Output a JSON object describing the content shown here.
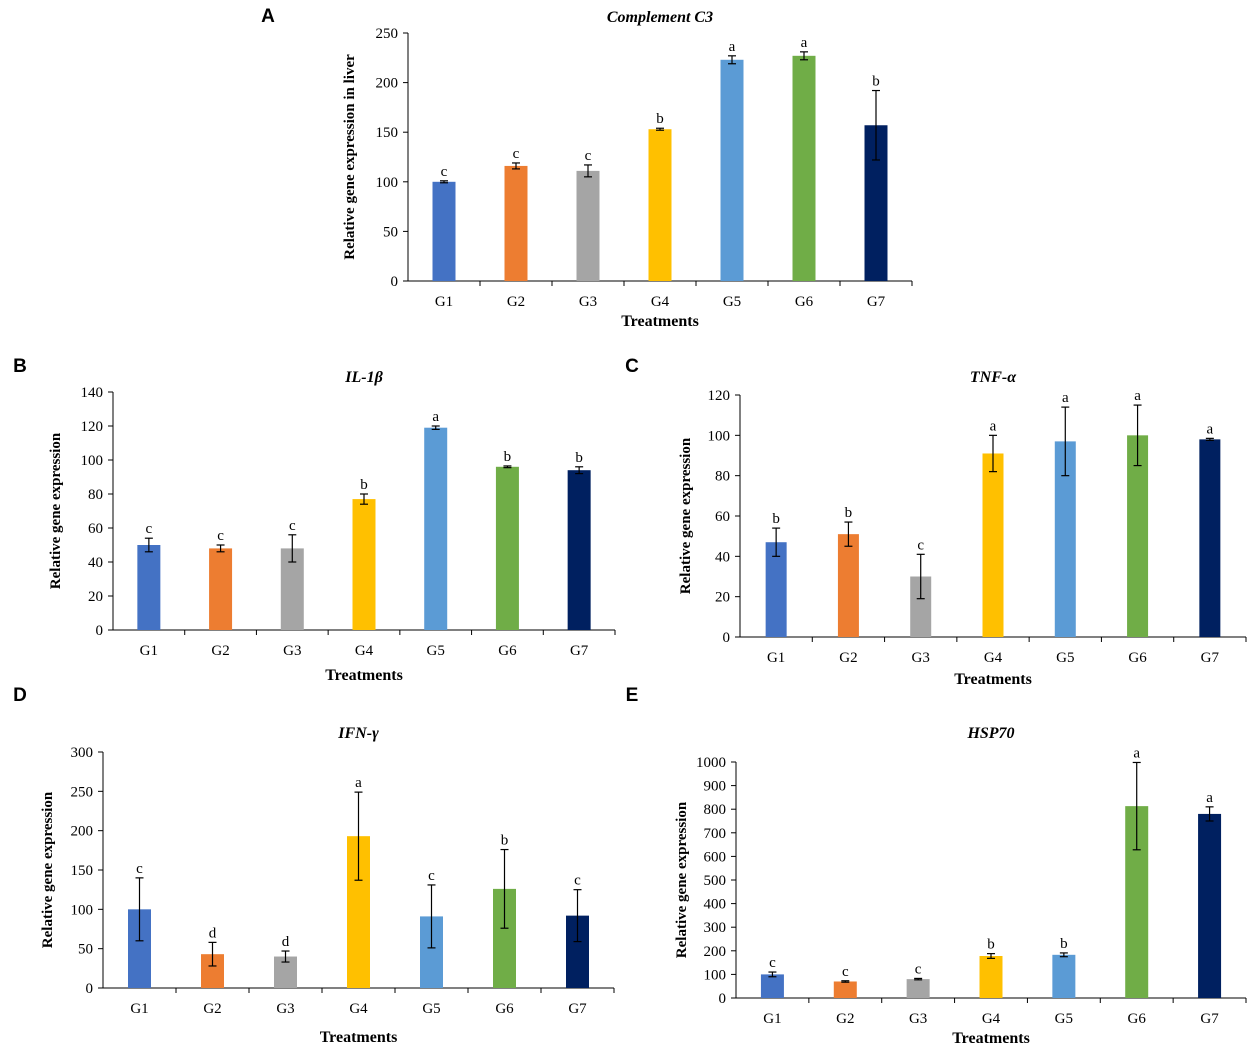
{
  "colors": {
    "G1": "#4472C4",
    "G2": "#ED7D31",
    "G3": "#A5A5A5",
    "G4": "#FFC000",
    "G5": "#5B9BD5",
    "G6": "#70AD47",
    "G7": "#002060"
  },
  "chart_data": [
    {
      "panel": "A",
      "type": "bar",
      "title": "Complement C3",
      "xlabel": "Treatments",
      "ylabel": "Relative gene expression in liver",
      "categories": [
        "G1",
        "G2",
        "G3",
        "G4",
        "G5",
        "G6",
        "G7"
      ],
      "values": [
        100,
        116,
        111,
        153,
        223,
        227,
        157
      ],
      "errors": [
        1,
        3,
        6,
        1,
        4,
        4,
        35
      ],
      "letters": [
        "c",
        "c",
        "c",
        "b",
        "a",
        "a",
        "b"
      ],
      "ylim": [
        0,
        250
      ],
      "yticks": [
        0,
        50,
        100,
        150,
        200,
        250
      ]
    },
    {
      "panel": "B",
      "type": "bar",
      "title": "IL-1β",
      "xlabel": "Treatments",
      "ylabel": "Relative gene expression",
      "categories": [
        "G1",
        "G2",
        "G3",
        "G4",
        "G5",
        "G6",
        "G7"
      ],
      "values": [
        50,
        48,
        48,
        77,
        119,
        96,
        94
      ],
      "errors": [
        4,
        2,
        8,
        3,
        1,
        0.5,
        2
      ],
      "letters": [
        "c",
        "c",
        "c",
        "b",
        "a",
        "b",
        "b"
      ],
      "ylim": [
        0,
        140
      ],
      "yticks": [
        0,
        20,
        40,
        60,
        80,
        100,
        120,
        140
      ]
    },
    {
      "panel": "C",
      "type": "bar",
      "title": "TNF-α",
      "xlabel": "Treatments",
      "ylabel": "Relative gene expression",
      "categories": [
        "G1",
        "G2",
        "G3",
        "G4",
        "G5",
        "G6",
        "G7"
      ],
      "values": [
        47,
        51,
        30,
        91,
        97,
        100,
        98
      ],
      "errors": [
        7,
        6,
        11,
        9,
        17,
        15,
        0.5
      ],
      "letters": [
        "b",
        "b",
        "c",
        "a",
        "a",
        "a",
        "a"
      ],
      "ylim": [
        0,
        120
      ],
      "yticks": [
        0,
        20,
        40,
        60,
        80,
        100,
        120
      ]
    },
    {
      "panel": "D",
      "type": "bar",
      "title": "IFN-γ",
      "xlabel": "Treatments",
      "ylabel": "Relative gene expression",
      "categories": [
        "G1",
        "G2",
        "G3",
        "G4",
        "G5",
        "G6",
        "G7"
      ],
      "values": [
        100,
        43,
        40,
        193,
        91,
        126,
        92
      ],
      "errors": [
        40,
        15,
        7,
        56,
        40,
        50,
        33
      ],
      "letters": [
        "c",
        "d",
        "d",
        "a",
        "c",
        "b",
        "c"
      ],
      "ylim": [
        0,
        300
      ],
      "yticks": [
        0,
        50,
        100,
        150,
        200,
        250,
        300
      ]
    },
    {
      "panel": "E",
      "type": "bar",
      "title": "HSP70",
      "xlabel": "Treatments",
      "ylabel": "Relative gene expression",
      "categories": [
        "G1",
        "G2",
        "G3",
        "G4",
        "G5",
        "G6",
        "G7"
      ],
      "values": [
        100,
        70,
        80,
        178,
        183,
        813,
        780
      ],
      "errors": [
        10,
        3,
        3,
        10,
        8,
        185,
        30
      ],
      "letters": [
        "c",
        "c",
        "c",
        "b",
        "b",
        "a",
        "a"
      ],
      "ylim": [
        0,
        1000
      ],
      "yticks": [
        0,
        100,
        200,
        300,
        400,
        500,
        600,
        700,
        800,
        900,
        1000
      ]
    }
  ]
}
